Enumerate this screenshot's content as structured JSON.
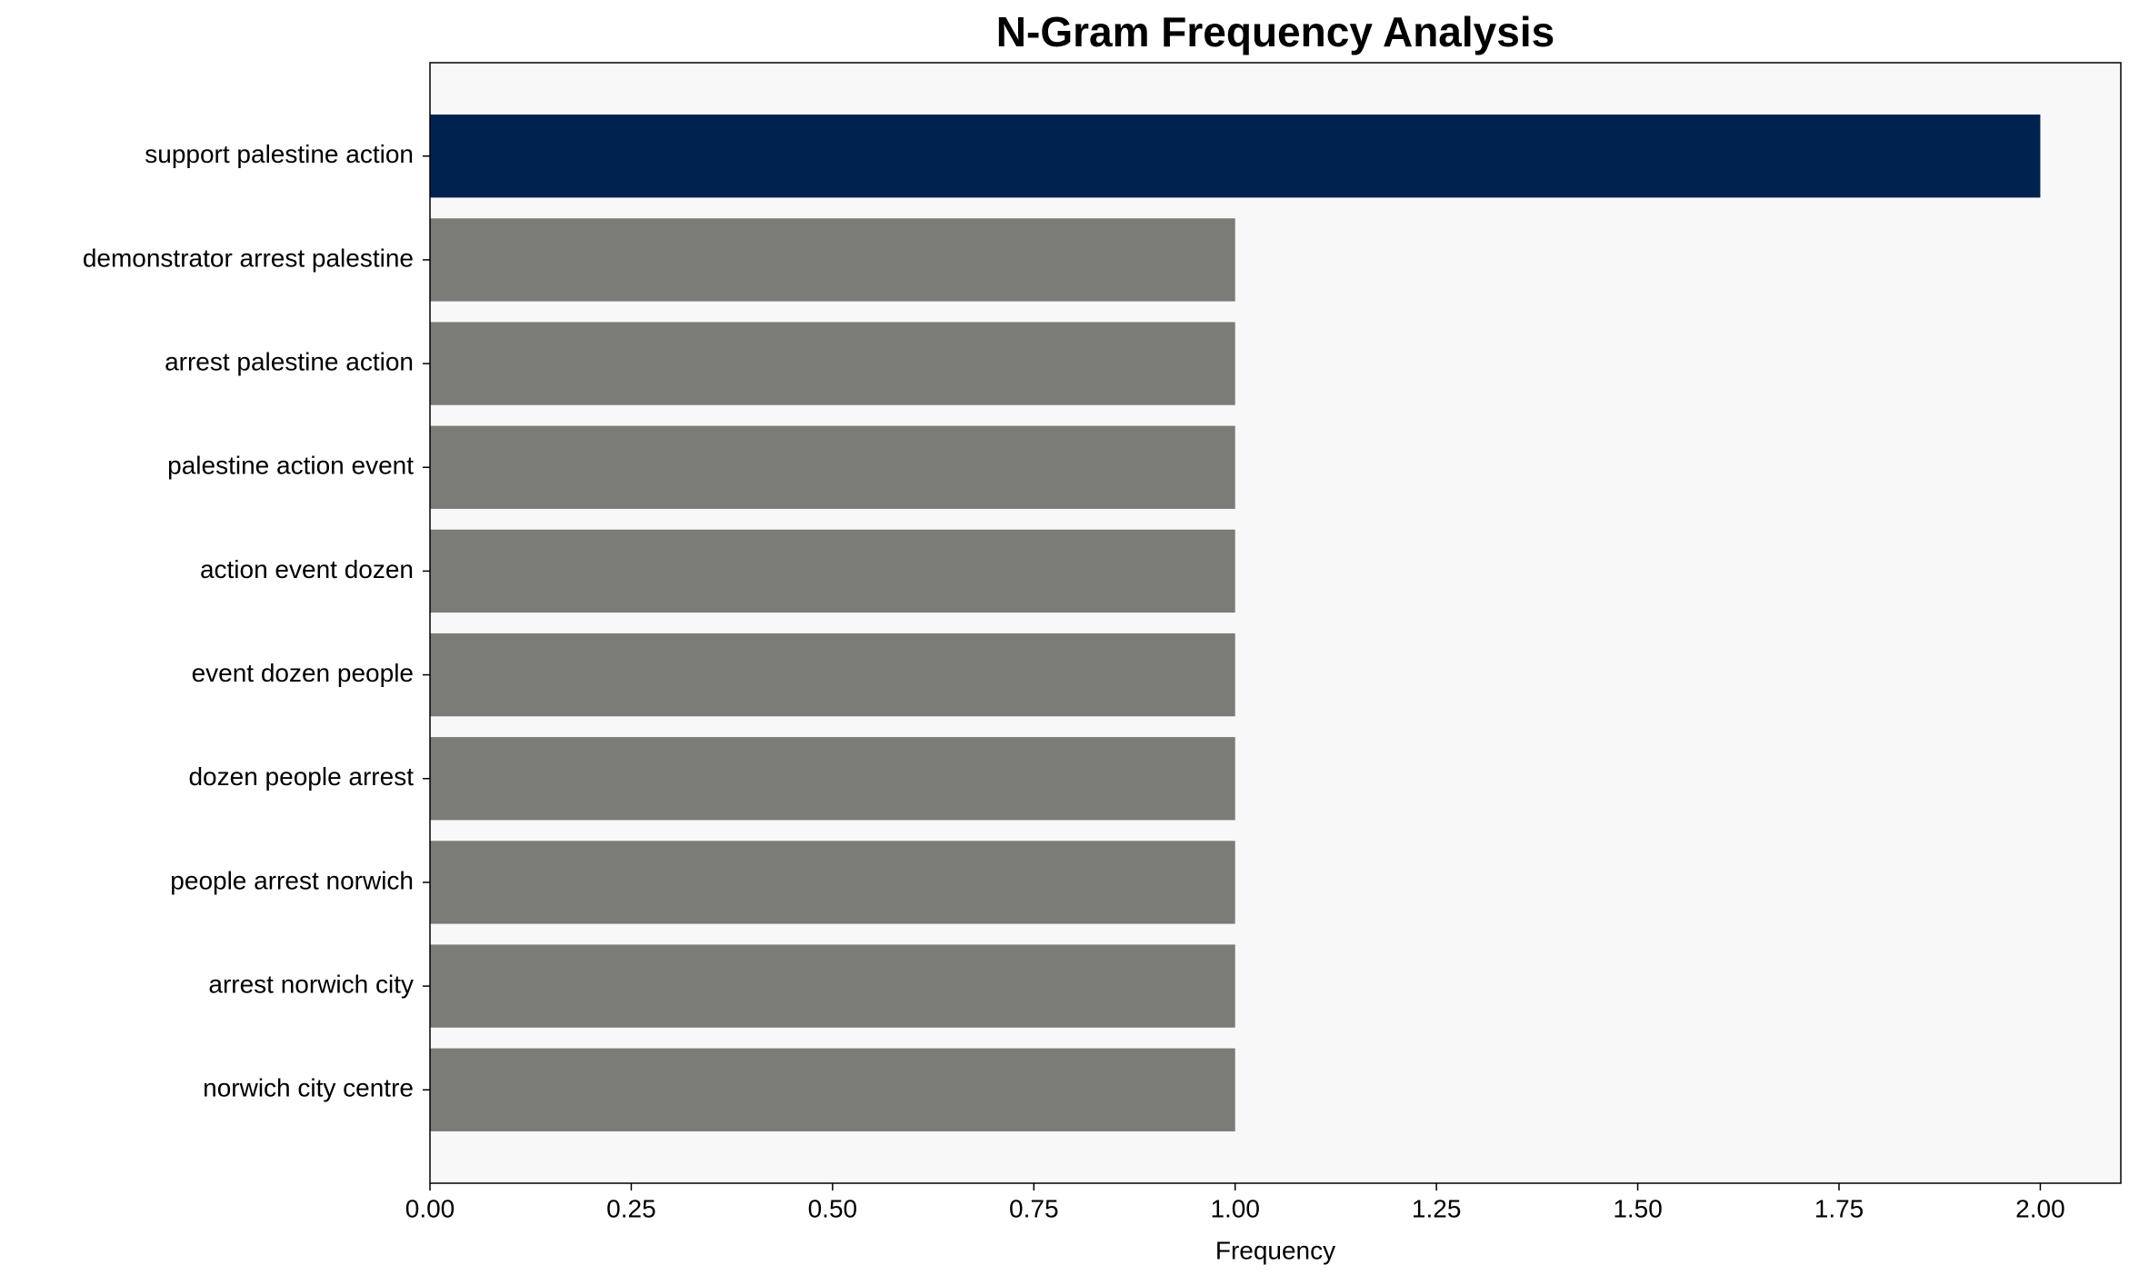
{
  "chart_data": {
    "type": "barh",
    "title": "N-Gram Frequency Analysis",
    "xlabel": "Frequency",
    "categories": [
      "support palestine action",
      "demonstrator arrest palestine",
      "arrest palestine action",
      "palestine action event",
      "action event dozen",
      "event dozen people",
      "dozen people arrest",
      "people arrest norwich",
      "arrest norwich city",
      "norwich city centre"
    ],
    "values": [
      2,
      1,
      1,
      1,
      1,
      1,
      1,
      1,
      1,
      1
    ],
    "colors": [
      "#00224e",
      "#7b7b77",
      "#7b7b77",
      "#7b7b77",
      "#7b7b77",
      "#7b7b77",
      "#7b7b77",
      "#7b7b77",
      "#7b7b77",
      "#7b7b77"
    ],
    "xlim": [
      0,
      2.1
    ],
    "xticks": [
      {
        "value": 0,
        "label": "0.00"
      },
      {
        "value": 0.25,
        "label": "0.25"
      },
      {
        "value": 0.5,
        "label": "0.50"
      },
      {
        "value": 0.75,
        "label": "0.75"
      },
      {
        "value": 1,
        "label": "1.00"
      },
      {
        "value": 1.25,
        "label": "1.25"
      },
      {
        "value": 1.5,
        "label": "1.50"
      },
      {
        "value": 1.75,
        "label": "1.75"
      },
      {
        "value": 2,
        "label": "2.00"
      }
    ],
    "grid": false
  }
}
